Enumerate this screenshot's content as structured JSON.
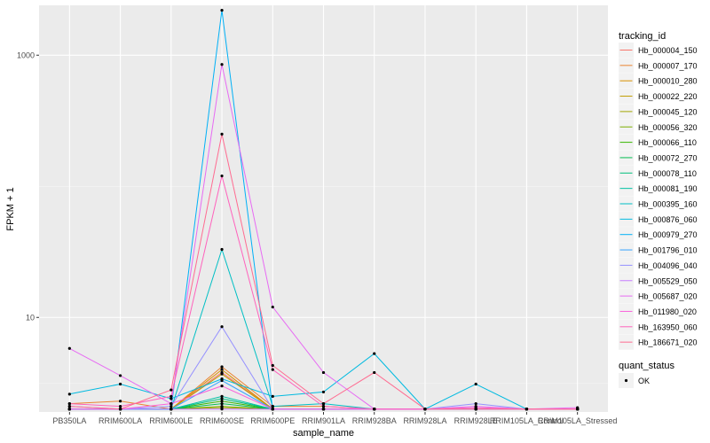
{
  "chart_data": {
    "type": "line",
    "xlabel": "sample_name",
    "ylabel": "FPKM + 1",
    "y_scale": "log10",
    "ylim": [
      1.9,
      2400
    ],
    "y_ticks": [
      10,
      1000
    ],
    "y_tick_labels": [
      "10",
      "1000"
    ],
    "categories": [
      "PB350LA",
      "RRIM600LA",
      "RRIM600LE",
      "RRIM600SE",
      "RRIM600PE",
      "RRIM901LA",
      "RRIM928BA",
      "RRIM928LA",
      "RRIM928LE",
      "RRIM105LA_Control",
      "RRIM105LA_Stressed"
    ],
    "legend": {
      "position": "right",
      "title": "tracking_id",
      "status_title": "quant_status",
      "status_label": "OK"
    },
    "series": [
      {
        "name": "Hb_000004_150",
        "color": "#F8766D",
        "values": [
          2,
          2,
          2,
          3.8,
          2,
          2,
          2,
          2,
          2,
          2,
          2
        ]
      },
      {
        "name": "Hb_000007_170",
        "color": "#EA8331",
        "values": [
          2.2,
          2.3,
          2,
          4.2,
          2.1,
          2.1,
          2,
          2,
          2,
          2,
          2
        ]
      },
      {
        "name": "Hb_000010_280",
        "color": "#D89000",
        "values": [
          2,
          2,
          2,
          4,
          2,
          2,
          2,
          2,
          2,
          2,
          2
        ]
      },
      {
        "name": "Hb_000022_220",
        "color": "#C09B00",
        "values": [
          2,
          2,
          2,
          3.7,
          2,
          2,
          2,
          2,
          2,
          2,
          2
        ]
      },
      {
        "name": "Hb_000045_120",
        "color": "#A3A500",
        "values": [
          2,
          2,
          2,
          2.05,
          2,
          2,
          2,
          2,
          2,
          2,
          2
        ]
      },
      {
        "name": "Hb_000056_320",
        "color": "#7CAE00",
        "values": [
          2,
          2,
          2,
          2.1,
          2,
          2,
          2,
          2,
          2,
          2,
          2
        ]
      },
      {
        "name": "Hb_000066_110",
        "color": "#39B600",
        "values": [
          2,
          2,
          2,
          2.3,
          2,
          2,
          2,
          2,
          2,
          2,
          2
        ]
      },
      {
        "name": "Hb_000072_270",
        "color": "#00BB4E",
        "values": [
          2,
          2,
          2,
          2.2,
          2,
          2,
          2,
          2,
          2,
          2,
          2
        ]
      },
      {
        "name": "Hb_000078_110",
        "color": "#00BF7D",
        "values": [
          2,
          2,
          2,
          2.4,
          2,
          2,
          2,
          2,
          2,
          2,
          2
        ]
      },
      {
        "name": "Hb_000081_190",
        "color": "#00C1A3",
        "values": [
          2,
          2,
          2,
          2.5,
          2,
          2,
          2,
          2,
          2,
          2,
          2
        ]
      },
      {
        "name": "Hb_000395_160",
        "color": "#00BFC4",
        "values": [
          2,
          2,
          2,
          33,
          2.1,
          2.2,
          2,
          2,
          2,
          2,
          2
        ]
      },
      {
        "name": "Hb_000876_060",
        "color": "#00BAE0",
        "values": [
          2.6,
          3.1,
          2.4,
          3.4,
          2.5,
          2.7,
          5.3,
          2,
          3.1,
          2,
          2
        ]
      },
      {
        "name": "Hb_000979_270",
        "color": "#00B0F6",
        "values": [
          2,
          2,
          2,
          2200,
          2,
          2,
          2,
          2,
          2,
          2,
          2
        ]
      },
      {
        "name": "Hb_001796_010",
        "color": "#35A2FF",
        "values": [
          2,
          2,
          2,
          3.3,
          2,
          2,
          2,
          2,
          2,
          2,
          2
        ]
      },
      {
        "name": "Hb_004096_040",
        "color": "#9590FF",
        "values": [
          2.1,
          2,
          2.1,
          8.5,
          2,
          2,
          2,
          2,
          2.2,
          2,
          2
        ]
      },
      {
        "name": "Hb_005529_050",
        "color": "#C77CFF",
        "values": [
          2,
          2,
          2,
          2,
          2,
          2,
          2,
          2,
          2,
          2,
          2
        ]
      },
      {
        "name": "Hb_005687_020",
        "color": "#E76BF3",
        "values": [
          5.8,
          3.6,
          2.2,
          850,
          12,
          3.8,
          2,
          2,
          2.1,
          2,
          2.05
        ]
      },
      {
        "name": "Hb_011980_020",
        "color": "#FA62DB",
        "values": [
          2,
          2,
          2.2,
          3,
          2,
          2,
          2,
          2,
          2,
          2,
          2
        ]
      },
      {
        "name": "Hb_163950_060",
        "color": "#FF62BC",
        "values": [
          2.2,
          2.1,
          2.5,
          120,
          4,
          2.1,
          2,
          2,
          2.05,
          2,
          2
        ]
      },
      {
        "name": "Hb_186671_020",
        "color": "#FF6C91",
        "values": [
          2.1,
          2,
          2.8,
          250,
          4.3,
          2.2,
          3.8,
          2,
          2,
          2,
          2
        ]
      }
    ]
  }
}
